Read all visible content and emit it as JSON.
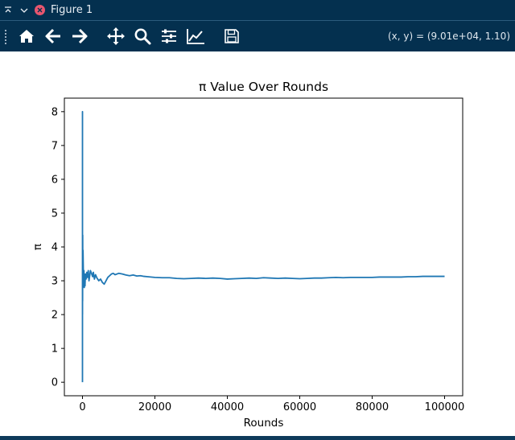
{
  "window": {
    "title": "Figure 1"
  },
  "titlebar_icons": [
    "keep-above-icon",
    "chevron-down-icon",
    "close-icon"
  ],
  "toolbar": {
    "tools": [
      {
        "name": "home-icon",
        "label": "Home"
      },
      {
        "name": "back-icon",
        "label": "Back"
      },
      {
        "name": "forward-icon",
        "label": "Forward"
      },
      {
        "name": "pan-icon",
        "label": "Pan"
      },
      {
        "name": "zoom-icon",
        "label": "Zoom"
      },
      {
        "name": "configure-subplots-icon",
        "label": "Subplots"
      },
      {
        "name": "edit-axis-icon",
        "label": "Customize"
      },
      {
        "name": "save-icon",
        "label": "Save"
      }
    ],
    "coordinates": "(x, y) = (9.01e+04, 1.10)"
  },
  "colors": {
    "window_bg": "#04304f",
    "icon": "#ffffff",
    "line": "#1f77b4"
  },
  "chart_data": {
    "type": "line",
    "title": "π Value Over Rounds",
    "xlabel": "Rounds",
    "ylabel": "π",
    "xlim": [
      -5000,
      105000
    ],
    "ylim": [
      -0.4,
      8.4
    ],
    "xticks": [
      0,
      20000,
      40000,
      60000,
      80000,
      100000
    ],
    "xtick_labels": [
      "0",
      "20000",
      "40000",
      "60000",
      "80000",
      "100000"
    ],
    "yticks": [
      0,
      1,
      2,
      3,
      4,
      5,
      6,
      7,
      8
    ],
    "ytick_labels": [
      "0",
      "1",
      "2",
      "3",
      "4",
      "5",
      "6",
      "7",
      "8"
    ],
    "grid": false,
    "series": [
      {
        "x": [
          1,
          2,
          3,
          5,
          8,
          12,
          20,
          35,
          60,
          100,
          150,
          220,
          300,
          400,
          500,
          600,
          700,
          800,
          1000,
          1200,
          1400,
          1600,
          1800,
          2000,
          2200,
          2500,
          2800,
          3000,
          3300,
          3600,
          4000,
          4500,
          5000,
          5500,
          6000,
          6500,
          7000,
          7500,
          8000,
          8500,
          9000,
          10000,
          11000,
          12000,
          13000,
          14000,
          15000,
          16000,
          17000,
          18000,
          20000,
          22000,
          24000,
          26000,
          28000,
          30000,
          32000,
          34000,
          36000,
          38000,
          40000,
          42000,
          44000,
          46000,
          48000,
          50000,
          52000,
          54000,
          56000,
          58000,
          60000,
          62000,
          64000,
          66000,
          68000,
          70000,
          72000,
          74000,
          76000,
          78000,
          80000,
          82000,
          84000,
          86000,
          88000,
          90000,
          92000,
          94000,
          96000,
          98000,
          100000
        ],
        "y": [
          0.0,
          8.0,
          5.3,
          4.0,
          3.0,
          2.0,
          3.6,
          2.4,
          4.35,
          2.8,
          3.9,
          3.4,
          2.9,
          3.3,
          2.8,
          3.0,
          2.85,
          3.2,
          3.05,
          3.25,
          3.1,
          3.3,
          3.0,
          3.15,
          3.3,
          3.22,
          3.12,
          3.25,
          3.05,
          3.18,
          3.08,
          3.0,
          3.05,
          2.95,
          2.9,
          3.0,
          3.1,
          3.15,
          3.2,
          3.22,
          3.18,
          3.22,
          3.2,
          3.17,
          3.15,
          3.17,
          3.14,
          3.15,
          3.13,
          3.12,
          3.1,
          3.09,
          3.09,
          3.07,
          3.06,
          3.07,
          3.08,
          3.07,
          3.08,
          3.07,
          3.05,
          3.06,
          3.07,
          3.08,
          3.07,
          3.09,
          3.08,
          3.07,
          3.08,
          3.07,
          3.06,
          3.07,
          3.08,
          3.08,
          3.09,
          3.1,
          3.09,
          3.1,
          3.1,
          3.1,
          3.1,
          3.11,
          3.11,
          3.11,
          3.11,
          3.12,
          3.12,
          3.13,
          3.13,
          3.13,
          3.13
        ]
      }
    ]
  }
}
